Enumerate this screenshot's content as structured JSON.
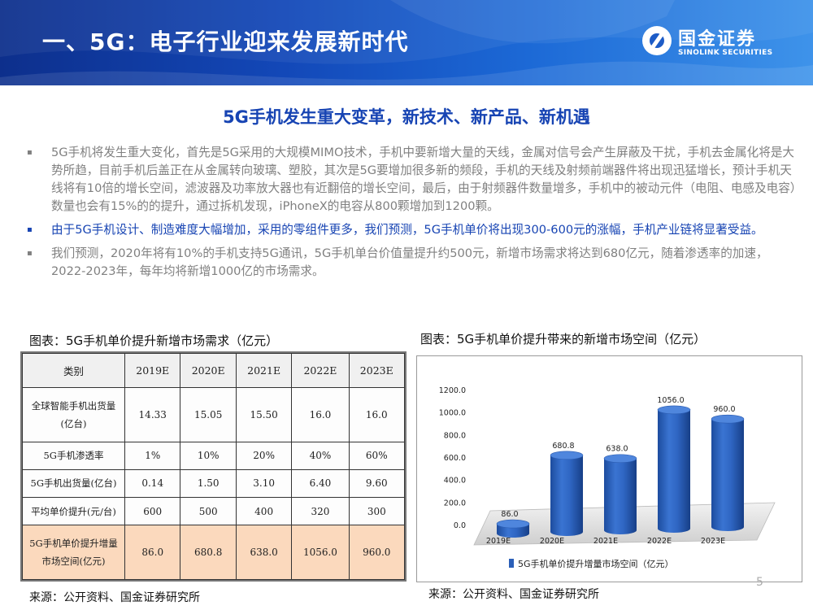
{
  "header": {
    "title": "一、5G：电子行业迎来发展新时代",
    "logo_cn": "国金证券",
    "logo_en": "SINOLINK SECURITIES"
  },
  "subtitle": "5G手机发生重大变革，新技术、新产品、新机遇",
  "bullets": [
    {
      "mark": "▪",
      "text": "5G手机将发生重大变化，首先是5G采用的大规模MIMO技术，手机中要新增大量的天线，金属对信号会产生屏蔽及干扰，手机去金属化将是大势所趋，目前手机后盖正在从金属转向玻璃、塑胶，其次是5G要增加很多新的频段，手机的天线及射频前端器件将出现迅猛增长，预计手机天线将有10倍的增长空间，滤波器及功率放大器也有近翻倍的增长空间，最后，由于射频器件数量增多，手机中的被动元件（电阻、电感及电容）数量也会有15%的的提升，通过拆机发现，iPhoneX的电容从800颗增加到1200颗。"
    },
    {
      "mark": "▪",
      "text": "由于5G手机设计、制造难度大幅增加，采用的零组件更多，我们预测，5G手机单价将出现300-600元的涨幅，手机产业链将显著受益。"
    },
    {
      "mark": "▪",
      "text": "我们预测，2020年将有10%的手机支持5G通讯，5G手机单台价值量提升约500元，新增市场需求将达到680亿元，随着渗透率的加速，2022-2023年，每年均将新增1000亿的市场需求。"
    }
  ],
  "table_caption": "图表：5G手机单价提升新增市场需求（亿元）",
  "chart_caption": "图表：5G手机单价提升带来的新增市场空间（亿元）",
  "table": {
    "headers": [
      "类别",
      "2019E",
      "2020E",
      "2021E",
      "2022E",
      "2023E"
    ],
    "rows": [
      [
        "全球智能手机出货量(亿台)",
        "14.33",
        "15.05",
        "15.50",
        "16.0",
        "16.0"
      ],
      [
        "5G手机渗透率",
        "1%",
        "10%",
        "20%",
        "40%",
        "60%"
      ],
      [
        "5G手机出货量(亿台)",
        "0.14",
        "1.50",
        "3.10",
        "6.40",
        "9.60"
      ],
      [
        "平均单价提升(元/台)",
        "600",
        "500",
        "400",
        "320",
        "300"
      ],
      [
        "5G手机单价提升增量市场空间(亿元)",
        "86.0",
        "680.8",
        "638.0",
        "1056.0",
        "960.0"
      ]
    ]
  },
  "chart_data": {
    "type": "bar",
    "categories": [
      "2019E",
      "2020E",
      "2021E",
      "2022E",
      "2023E"
    ],
    "series": [
      {
        "name": "5G手机单价提升增量市场空间（亿元）",
        "values": [
          86.0,
          680.8,
          638.0,
          1056.0,
          960.0
        ]
      }
    ],
    "data_labels": [
      "86.0",
      "680.8",
      "638.0",
      "1056.0",
      "960.0"
    ],
    "yticks": [
      "0.0",
      "200.0",
      "400.0",
      "600.0",
      "800.0",
      "1000.0",
      "1200.0"
    ],
    "ylim": [
      0,
      1200
    ],
    "grid": false,
    "legend": "bottom",
    "style": "3d-cylinder",
    "bar_color": "#2b5fb8"
  },
  "sources": {
    "left": "来源：公开资料、国金证券研究所",
    "right": "来源：公开资料、国金证券研究所"
  },
  "page_number": "5",
  "colors": {
    "header_blue": "#1348b8",
    "subtitle_blue": "#1744b3",
    "highlight_row": "#fbd9bd"
  }
}
